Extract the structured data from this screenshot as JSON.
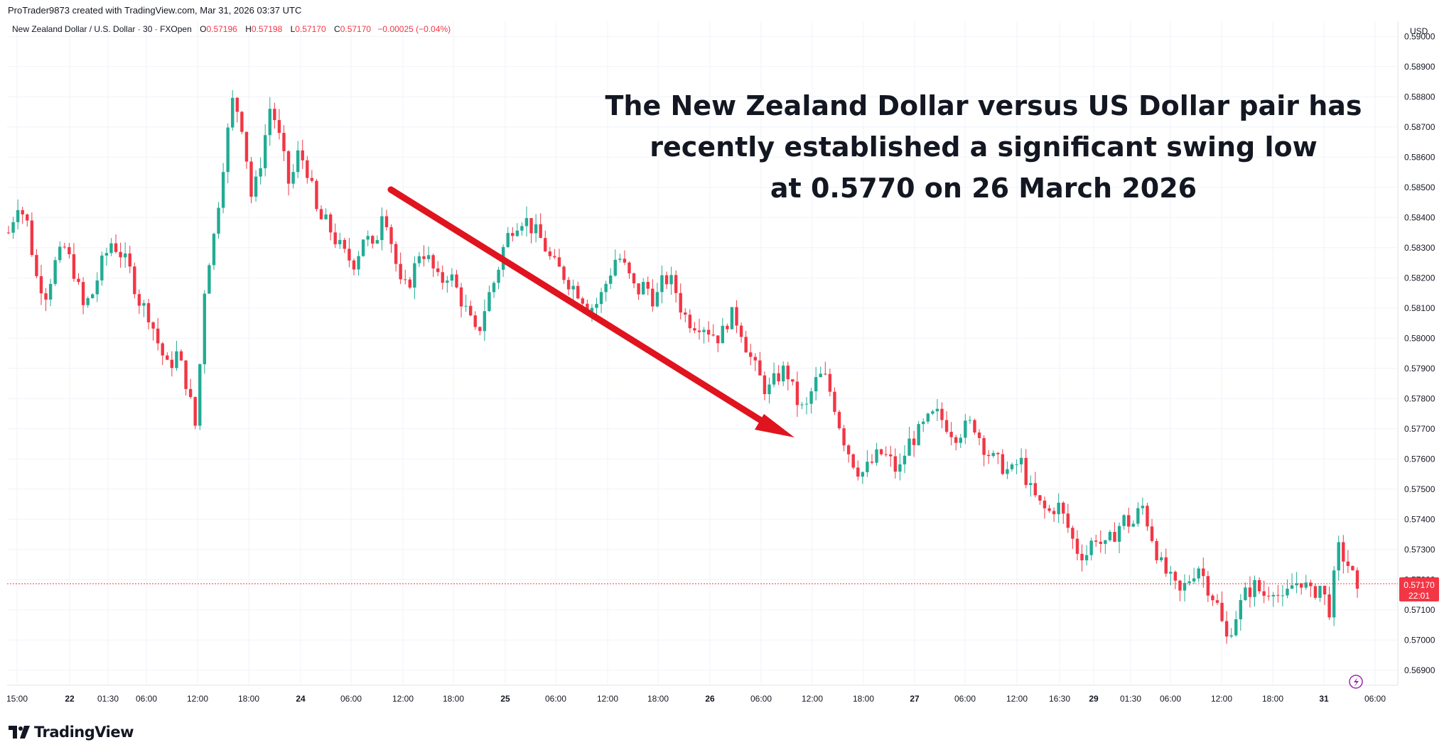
{
  "header": {
    "creator_line": "ProTrader9873 created with TradingView.com, Mar 31, 2026 03:37 UTC",
    "symbol": "New Zealand Dollar / U.S. Dollar · 30 · FXOpen",
    "open_label": "O",
    "open": "0.57196",
    "high_label": "H",
    "high": "0.57198",
    "low_label": "L",
    "low": "0.57170",
    "close_label": "C",
    "close": "0.57170",
    "change": "−0.00025 (−0.04%)"
  },
  "brand": {
    "name": "TradingView"
  },
  "chart_data": {
    "type": "candlestick",
    "currency": "USD",
    "ylim": [
      0.5685,
      0.5905
    ],
    "y_ticks": [
      "0.59000",
      "0.58900",
      "0.58800",
      "0.58700",
      "0.58600",
      "0.58500",
      "0.58400",
      "0.58300",
      "0.58200",
      "0.58100",
      "0.58000",
      "0.57900",
      "0.57800",
      "0.57700",
      "0.57600",
      "0.57500",
      "0.57400",
      "0.57300",
      "0.57200",
      "0.57100",
      "0.57000",
      "0.56900"
    ],
    "x_ticks": [
      "15:00",
      "22",
      "01:30",
      "06:00",
      "12:00",
      "18:00",
      "24",
      "06:00",
      "12:00",
      "18:00",
      "25",
      "06:00",
      "12:00",
      "18:00",
      "26",
      "06:00",
      "12:00",
      "18:00",
      "27",
      "06:00",
      "12:00",
      "16:30",
      "29",
      "01:30",
      "06:00",
      "12:00",
      "18:00",
      "31",
      "06:00"
    ],
    "last_price": "0.57170",
    "countdown": "22:01",
    "annotation": "The New Zealand Dollar versus US Dollar pair has recently established a significant swing low at 0.5770 on 26 March 2026",
    "trend_arrow": {
      "from": {
        "x": "24 ~12:00",
        "y": 0.585
      },
      "to": {
        "x": "26 ~13:00",
        "y": 0.5767
      }
    },
    "colors": {
      "up": "#22ab94",
      "down": "#f23645",
      "arrow": "#e0141e",
      "grid": "#f0f3fa"
    },
    "path": [
      0.5835,
      0.5845,
      0.5838,
      0.582,
      0.5815,
      0.5825,
      0.583,
      0.5822,
      0.581,
      0.5815,
      0.5825,
      0.5832,
      0.5828,
      0.5822,
      0.5812,
      0.5808,
      0.5798,
      0.579,
      0.5795,
      0.5785,
      0.577,
      0.582,
      0.5835,
      0.586,
      0.588,
      0.587,
      0.5845,
      0.586,
      0.5878,
      0.5865,
      0.585,
      0.5862,
      0.5855,
      0.584,
      0.5838,
      0.5832,
      0.5827,
      0.5825,
      0.5835,
      0.5828,
      0.5845,
      0.583,
      0.5815,
      0.582,
      0.583,
      0.5825,
      0.5818,
      0.5822,
      0.5815,
      0.5808,
      0.58,
      0.5812,
      0.582,
      0.5832,
      0.5838,
      0.584,
      0.5836,
      0.5832,
      0.5825,
      0.5822,
      0.5818,
      0.5815,
      0.581,
      0.5812,
      0.582,
      0.5828,
      0.5822,
      0.5815,
      0.5818,
      0.5812,
      0.582,
      0.5818,
      0.5808,
      0.5805,
      0.5805,
      0.5802,
      0.58,
      0.5808,
      0.5805,
      0.5795,
      0.5788,
      0.5782,
      0.5787,
      0.579,
      0.578,
      0.5775,
      0.5785,
      0.5788,
      0.578,
      0.5768,
      0.576,
      0.5755,
      0.5758,
      0.5762,
      0.576,
      0.5755,
      0.5765,
      0.5768,
      0.5772,
      0.5775,
      0.5772,
      0.5768,
      0.577,
      0.5772,
      0.5765,
      0.576,
      0.5758,
      0.5755,
      0.576,
      0.575,
      0.5745,
      0.5742,
      0.5745,
      0.5738,
      0.573,
      0.5728,
      0.5735,
      0.573,
      0.5735,
      0.574,
      0.5738,
      0.5745,
      0.5735,
      0.5725,
      0.572,
      0.5715,
      0.572,
      0.5725,
      0.5718,
      0.5712,
      0.57,
      0.5708,
      0.5715,
      0.5718,
      0.5715,
      0.5718,
      0.5712,
      0.5718,
      0.572,
      0.5715,
      0.5718,
      0.571,
      0.573,
      0.5725,
      0.5717
    ]
  }
}
